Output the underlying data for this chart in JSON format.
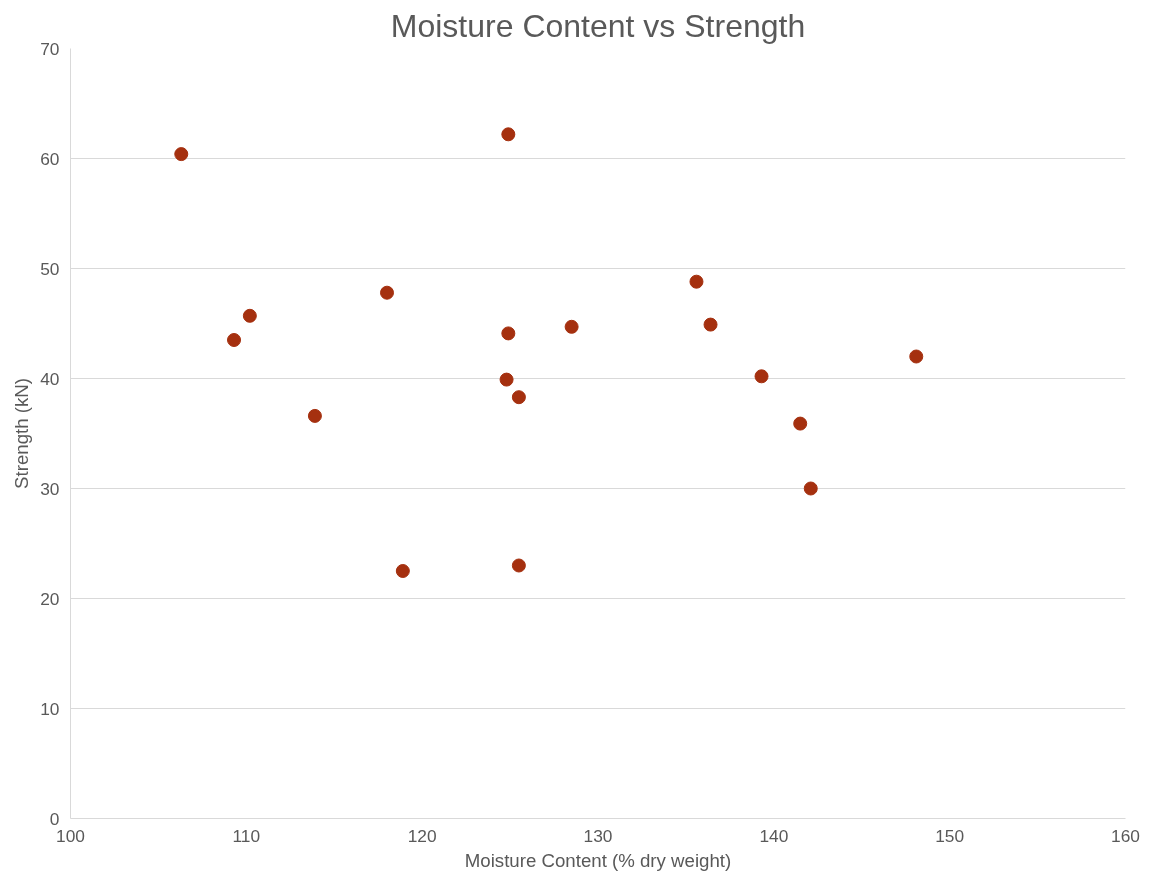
{
  "chart_data": {
    "type": "scatter",
    "title": "Moisture Content vs Strength",
    "xlabel": "Moisture Content (% dry weight)",
    "ylabel": "Strength (kN)",
    "x": [
      106.3,
      124.9,
      109.3,
      110.2,
      113.9,
      118.0,
      118.9,
      124.9,
      124.8,
      125.5,
      125.5,
      128.5,
      135.6,
      136.4,
      139.3,
      141.5,
      142.1,
      148.1
    ],
    "series": [
      {
        "color": "#a5300f",
        "values": [
          60.4,
          62.2,
          43.5,
          45.7,
          36.6,
          47.8,
          22.5,
          44.1,
          39.9,
          38.3,
          23.0,
          44.7,
          48.8,
          44.9,
          40.2,
          35.9,
          30.0,
          42.0
        ]
      }
    ],
    "xlim": [
      100,
      160
    ],
    "xticks": [
      100,
      110,
      120,
      130,
      140,
      150,
      160
    ],
    "ylim": [
      0,
      70
    ],
    "yticks": [
      0,
      10,
      20,
      30,
      40,
      50,
      60,
      70
    ],
    "grid": "y",
    "marker": "circle"
  }
}
